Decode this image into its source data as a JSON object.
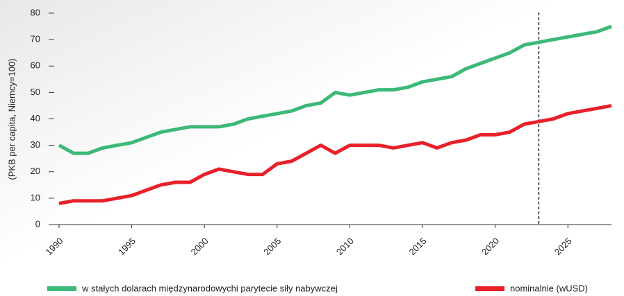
{
  "chart_data": {
    "type": "line",
    "y_label": "(PKB  per capita, Niemcy=100)",
    "x": [
      1990,
      1991,
      1992,
      1993,
      1994,
      1995,
      1996,
      1997,
      1998,
      1999,
      2000,
      2001,
      2002,
      2003,
      2004,
      2005,
      2006,
      2007,
      2008,
      2009,
      2010,
      2011,
      2012,
      2013,
      2014,
      2015,
      2016,
      2017,
      2018,
      2019,
      2020,
      2021,
      2022,
      2023,
      2024,
      2025,
      2026,
      2027,
      2028
    ],
    "series": [
      {
        "name": "w stałych dolarach międzynarodowychi parytecie siły nabywczej",
        "color": "#3cb878",
        "values": [
          30,
          27,
          27,
          29,
          30,
          31,
          33,
          35,
          36,
          37,
          37,
          37,
          38,
          40,
          41,
          42,
          43,
          45,
          46,
          50,
          49,
          50,
          51,
          51,
          52,
          54,
          55,
          56,
          59,
          61,
          63,
          65,
          68,
          69,
          70,
          71,
          72,
          73,
          75
        ]
      },
      {
        "name": "nominalnie (wUSD)",
        "color": "#e8202a",
        "values": [
          8,
          9,
          9,
          9,
          10,
          11,
          13,
          15,
          16,
          16,
          19,
          21,
          20,
          19,
          19,
          23,
          24,
          27,
          30,
          27,
          30,
          30,
          30,
          29,
          30,
          31,
          29,
          31,
          32,
          34,
          34,
          35,
          38,
          39,
          40,
          42,
          43,
          44,
          45
        ]
      }
    ],
    "xlim": [
      1990,
      2028
    ],
    "xticks": [
      1990,
      1995,
      2000,
      2005,
      2010,
      2015,
      2020,
      2025
    ],
    "ylim": [
      0,
      80
    ],
    "yticks": [
      0,
      10,
      20,
      30,
      40,
      50,
      60,
      70,
      80
    ],
    "vline_x": 2023
  }
}
